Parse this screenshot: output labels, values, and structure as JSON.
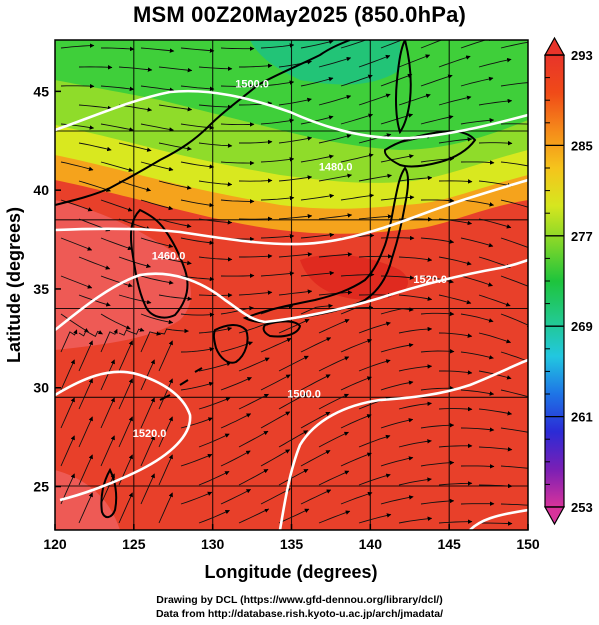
{
  "title": "MSM 00Z20May2025 (850.0hPa)",
  "x_axis": {
    "label": "Longitude (degrees)",
    "ticks": [
      "120",
      "125",
      "130",
      "135",
      "140",
      "145",
      "150"
    ]
  },
  "y_axis": {
    "label": "Latitude  (degrees)",
    "ticks": [
      "25",
      "30",
      "35",
      "40",
      "45"
    ]
  },
  "colorbar": {
    "ticks": [
      "293",
      "285",
      "277",
      "269",
      "261",
      "253"
    ],
    "min": 253,
    "max": 293,
    "colors": [
      "#d8339b",
      "#7a1fb5",
      "#2b2bd6",
      "#1e74e6",
      "#22c7e0",
      "#22c98a",
      "#1ec43c",
      "#7fd62a",
      "#d6e61f",
      "#f5c41c",
      "#f58a1a",
      "#f04a18",
      "#e8342a"
    ]
  },
  "contours": [
    {
      "label": "1500.0",
      "lon": 132.5,
      "lat": 45.2
    },
    {
      "label": "1480.0",
      "lon": 137.8,
      "lat": 41.0
    },
    {
      "label": "1460.0",
      "lon": 127.2,
      "lat": 36.5
    },
    {
      "label": "1520.0",
      "lon": 143.8,
      "lat": 35.3
    },
    {
      "label": "1500.0",
      "lon": 135.8,
      "lat": 29.5
    },
    {
      "label": "1520.0",
      "lon": 126.0,
      "lat": 27.5
    }
  ],
  "credits": {
    "line1": "Drawing by DCL (https://www.gfd-dennou.org/library/dcl/)",
    "line2": "Data from http://database.rish.kyoto-u.ac.jp/arch/jmadata/"
  }
}
